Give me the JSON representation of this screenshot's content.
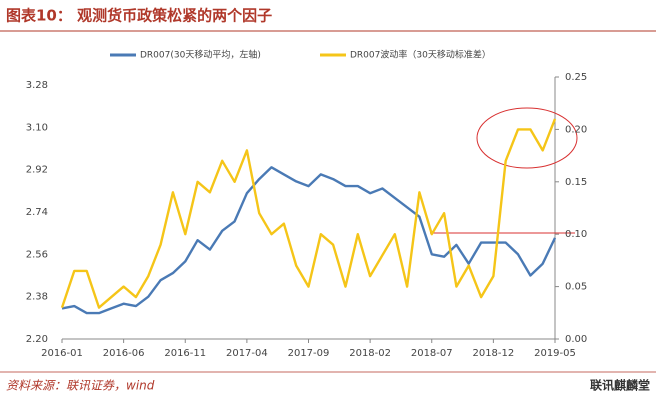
{
  "chart_data": {
    "type": "line",
    "title": "图表10： 观测货币政策松紧的两个因子",
    "categories": [
      "2016-01",
      null,
      null,
      null,
      null,
      "2016-06",
      null,
      null,
      null,
      null,
      "2016-11",
      null,
      null,
      null,
      null,
      "2017-04",
      null,
      null,
      null,
      null,
      "2017-09",
      null,
      null,
      null,
      null,
      "2018-02",
      null,
      null,
      null,
      null,
      "2018-07",
      null,
      null,
      null,
      null,
      "2018-12",
      null,
      null,
      null,
      null,
      "2019-05"
    ],
    "series": [
      {
        "name": "DR007(30天移动平均，左轴)",
        "color": "#4a7ab5",
        "values": [
          2.33,
          2.34,
          2.31,
          2.31,
          2.33,
          2.35,
          2.34,
          2.38,
          2.45,
          2.48,
          2.53,
          2.62,
          2.58,
          2.66,
          2.7,
          2.82,
          2.88,
          2.93,
          2.9,
          2.87,
          2.85,
          2.9,
          2.88,
          2.85,
          2.85,
          2.82,
          2.84,
          2.8,
          2.76,
          2.72,
          2.56,
          2.55,
          2.6,
          2.52,
          2.61,
          2.61,
          2.61,
          2.56,
          2.47,
          2.52,
          2.63
        ]
      },
      {
        "name": "DR007波动率（30天移动标准差）",
        "color": "#f5c518",
        "axis": "y2",
        "values": [
          0.03,
          0.065,
          0.065,
          0.03,
          0.04,
          0.05,
          0.04,
          0.06,
          0.09,
          0.14,
          0.1,
          0.15,
          0.14,
          0.17,
          0.15,
          0.18,
          0.12,
          0.1,
          0.11,
          0.07,
          0.05,
          0.1,
          0.09,
          0.05,
          0.1,
          0.06,
          0.08,
          0.1,
          0.05,
          0.14,
          0.1,
          0.12,
          0.05,
          0.07,
          0.04,
          0.06,
          0.17,
          0.2,
          0.2,
          0.18,
          0.21
        ]
      }
    ],
    "ylim": [
      2.2,
      3.28
    ],
    "yticks": [
      {
        "value": 2.2,
        "label": "2.20"
      },
      2.38,
      2.56,
      2.74,
      2.92,
      {
        "value": 3.1,
        "label": "3.10"
      },
      3.28
    ],
    "y2lim": [
      0,
      0.25
    ],
    "y2ticks": [
      {
        "value": 0,
        "label": "0.00"
      },
      0.05,
      {
        "value": 0.1,
        "label": "0.10"
      },
      0.15,
      {
        "value": 0.2,
        "label": "0.20"
      },
      0.25
    ],
    "source": "资料来源：联讯证券，wind",
    "watermark": "联讯麒麟堂"
  }
}
